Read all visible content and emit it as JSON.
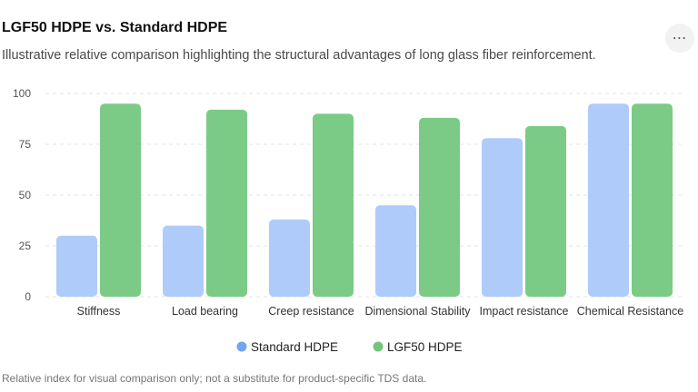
{
  "header": {
    "title": "LGF50 HDPE vs. Standard HDPE",
    "subtitle": "Illustrative relative comparison highlighting the structural advantages of long glass fiber reinforcement.",
    "menu_icon": "more-horizontal-icon"
  },
  "footnote": "Relative index for visual comparison only; not a substitute for product-specific TDS data.",
  "chart_data": {
    "type": "bar",
    "title": "LGF50 HDPE vs. Standard HDPE",
    "xlabel": "",
    "ylabel": "",
    "ylim": [
      0,
      100
    ],
    "yticks": [
      0,
      25,
      50,
      75,
      100
    ],
    "grid": true,
    "legend_position": "bottom",
    "categories": [
      "Stiffness",
      "Load bearing",
      "Creep resistance",
      "Dimensional Stability",
      "Impact resistance",
      "Chemical Resistance"
    ],
    "series": [
      {
        "name": "Standard HDPE",
        "color": "#aecbfa",
        "legend_color": "#6ea6ef",
        "values": [
          30,
          35,
          38,
          45,
          78,
          95
        ]
      },
      {
        "name": "LGF50 HDPE",
        "color": "#7bcb87",
        "legend_color": "#72c47f",
        "values": [
          95,
          92,
          90,
          88,
          84,
          95
        ]
      }
    ]
  }
}
